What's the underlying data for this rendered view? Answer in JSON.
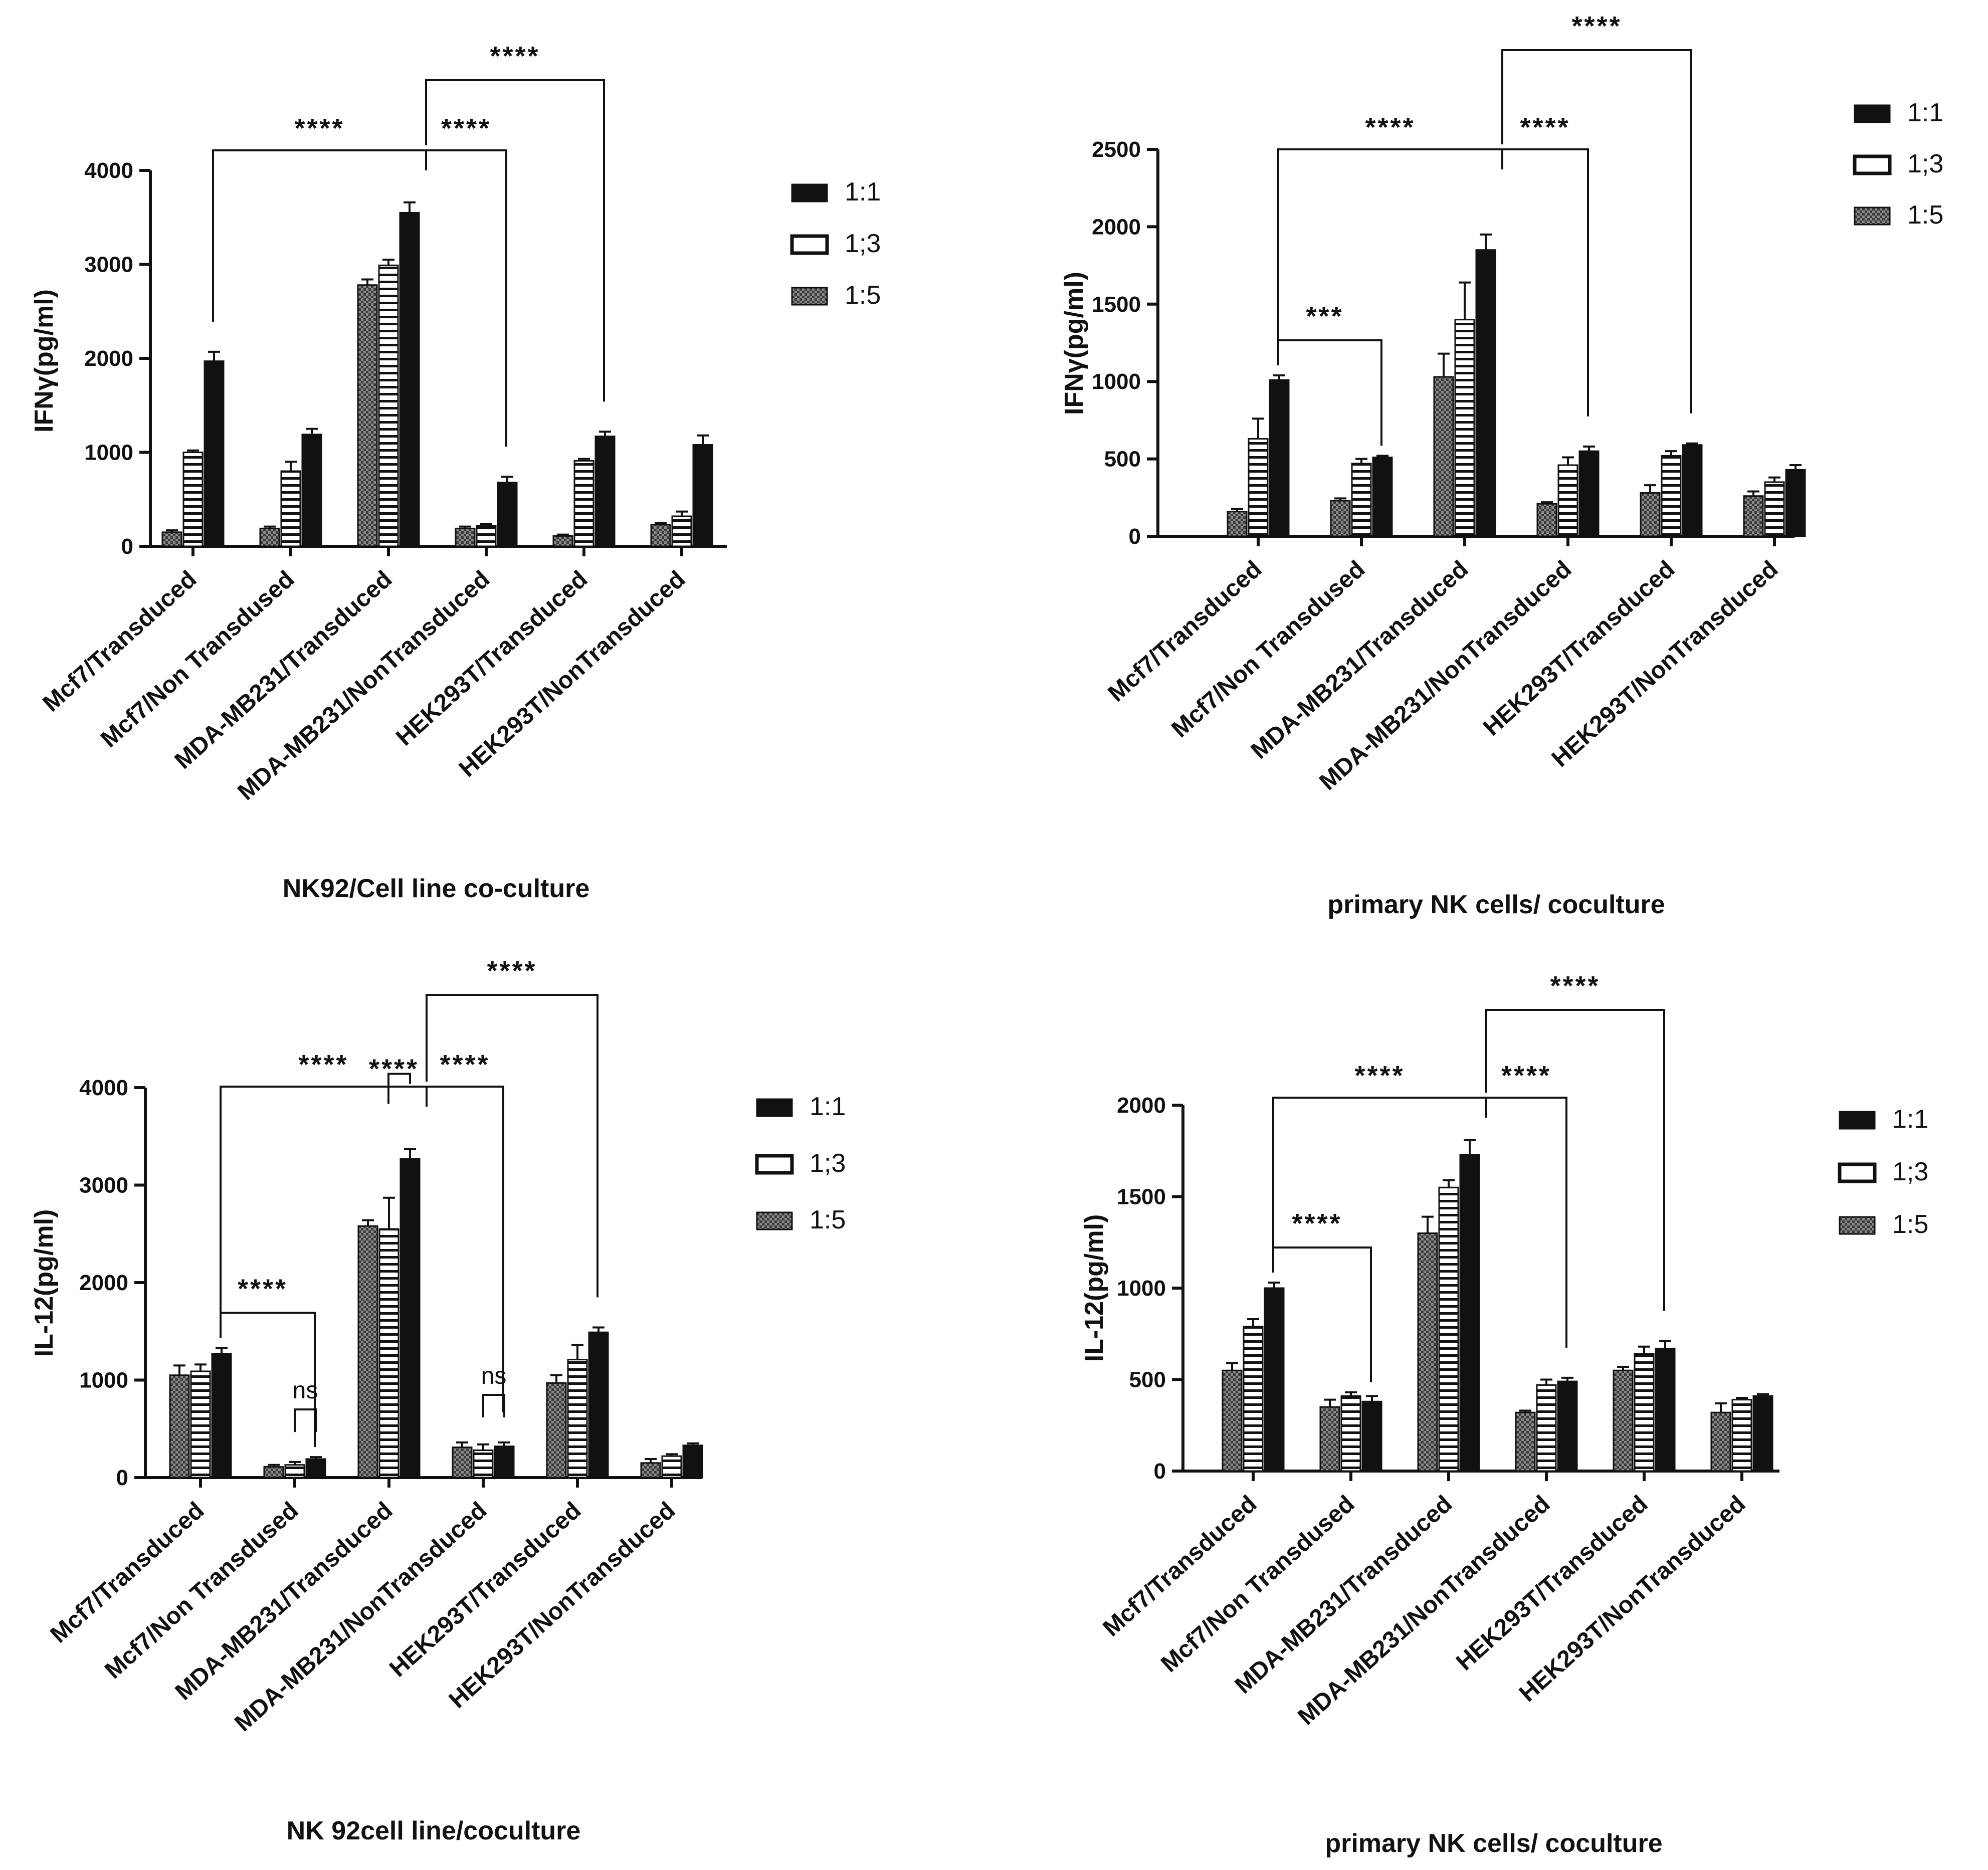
{
  "chart_data": [
    {
      "type": "bar",
      "title": "",
      "ylabel": "IFNγ(pg/ml)",
      "xlabel": "NK92/Cell line co-culture",
      "ylim": [
        0,
        4000
      ],
      "yticks": [
        0,
        1000,
        2000,
        3000,
        4000
      ],
      "legend_position": "right",
      "categories": [
        "Mcf7/Transduced",
        "Mcf7/Non Transdused",
        "MDA-MB231/Transduced",
        "MDA-MB231/NonTransduced",
        "HEK293T/Transduced",
        "HEK293T/NonTransduced"
      ],
      "series": [
        {
          "name": "1:5",
          "values": [
            150,
            190,
            2780,
            190,
            110,
            230
          ],
          "errors": [
            20,
            20,
            60,
            20,
            15,
            20
          ]
        },
        {
          "name": "1;3",
          "values": [
            1000,
            800,
            2990,
            220,
            910,
            320
          ],
          "errors": [
            20,
            100,
            60,
            20,
            20,
            50
          ]
        },
        {
          "name": "1:1",
          "values": [
            1970,
            1190,
            3550,
            680,
            1170,
            1080
          ],
          "errors": [
            100,
            60,
            110,
            60,
            50,
            100
          ]
        }
      ],
      "significance": [
        {
          "from": 0,
          "to": 3,
          "label": "****"
        },
        {
          "from": 2,
          "to": 3,
          "label": "****"
        },
        {
          "from": 2,
          "to": 4,
          "label": "****"
        }
      ]
    },
    {
      "type": "bar",
      "title": "",
      "ylabel": "IFNγ(pg/ml)",
      "xlabel": "primary NK cells/ coculture",
      "ylim": [
        0,
        2500
      ],
      "yticks": [
        0,
        500,
        1000,
        1500,
        2000,
        2500
      ],
      "legend_position": "right",
      "categories": [
        "Mcf7/Transduced",
        "Mcf7/Non Transdused",
        "MDA-MB231/Transduced",
        "MDA-MB231/NonTransduced",
        "HEK293T/Transduced",
        "HEK293T/NonTransduced"
      ],
      "series": [
        {
          "name": "1:5",
          "values": [
            160,
            230,
            1030,
            210,
            280,
            260
          ],
          "errors": [
            15,
            15,
            150,
            10,
            50,
            30
          ]
        },
        {
          "name": "1;3",
          "values": [
            630,
            470,
            1400,
            460,
            520,
            350
          ],
          "errors": [
            130,
            30,
            240,
            50,
            30,
            30
          ]
        },
        {
          "name": "1:1",
          "values": [
            1010,
            510,
            1850,
            550,
            590,
            430
          ],
          "errors": [
            30,
            10,
            100,
            30,
            10,
            30
          ]
        }
      ],
      "significance": [
        {
          "from": 0,
          "to": 1,
          "label": "***"
        },
        {
          "from": 0,
          "to": 3,
          "label": "****"
        },
        {
          "from": 2,
          "to": 3,
          "label": "****"
        },
        {
          "from": 2,
          "to": 4,
          "label": "****"
        }
      ]
    },
    {
      "type": "bar",
      "title": "",
      "ylabel": "IL-12(pg/ml)",
      "xlabel": "NK 92cell line/coculture",
      "ylim": [
        0,
        4000
      ],
      "yticks": [
        0,
        1000,
        2000,
        3000,
        4000
      ],
      "legend_position": "right",
      "categories": [
        "Mcf7/Transduced",
        "Mcf7/Non Transdused",
        "MDA-MB231/Transduced",
        "MDA-MB231/NonTransduced",
        "HEK293T/Transduced",
        "HEK293T/NonTransduced"
      ],
      "series": [
        {
          "name": "1:5",
          "values": [
            1050,
            110,
            2580,
            310,
            970,
            150
          ],
          "errors": [
            100,
            20,
            60,
            50,
            80,
            40
          ]
        },
        {
          "name": "1;3",
          "values": [
            1090,
            130,
            2550,
            280,
            1210,
            220
          ],
          "errors": [
            70,
            30,
            320,
            60,
            150,
            20
          ]
        },
        {
          "name": "1:1",
          "values": [
            1270,
            190,
            3270,
            320,
            1490,
            330
          ],
          "errors": [
            60,
            20,
            100,
            40,
            50,
            20
          ]
        }
      ],
      "significance": [
        {
          "from": 0,
          "to": 1,
          "label": "****"
        },
        {
          "from": 0,
          "to": 3,
          "label": "****"
        },
        {
          "from": 2,
          "to": 3,
          "label": "****"
        },
        {
          "from": 2,
          "to": 4,
          "label": "****"
        },
        {
          "from": 2,
          "to": 2,
          "label": "****"
        },
        {
          "from": 1,
          "to": 1,
          "label": "ns"
        },
        {
          "from": 3,
          "to": 3,
          "label": "ns"
        }
      ]
    },
    {
      "type": "bar",
      "title": "",
      "ylabel": "IL-12(pg/ml)",
      "xlabel": "primary NK cells/ coculture",
      "ylim": [
        0,
        2000
      ],
      "yticks": [
        0,
        500,
        1000,
        1500,
        2000
      ],
      "legend_position": "right",
      "categories": [
        "Mcf7/Transduced",
        "Mcf7/Non Transdused",
        "MDA-MB231/Transduced",
        "MDA-MB231/NonTransduced",
        "HEK293T/Transduced",
        "HEK293T/NonTransduced"
      ],
      "series": [
        {
          "name": "1:5",
          "values": [
            550,
            350,
            1300,
            320,
            550,
            320
          ],
          "errors": [
            40,
            40,
            90,
            10,
            20,
            50
          ]
        },
        {
          "name": "1;3",
          "values": [
            790,
            410,
            1550,
            470,
            640,
            390
          ],
          "errors": [
            40,
            20,
            40,
            30,
            40,
            10
          ]
        },
        {
          "name": "1:1",
          "values": [
            1000,
            380,
            1730,
            490,
            670,
            410
          ],
          "errors": [
            30,
            30,
            80,
            20,
            40,
            10
          ]
        }
      ],
      "significance": [
        {
          "from": 0,
          "to": 1,
          "label": "****"
        },
        {
          "from": 0,
          "to": 3,
          "label": "****"
        },
        {
          "from": 2,
          "to": 3,
          "label": "****"
        },
        {
          "from": 2,
          "to": 4,
          "label": "****"
        }
      ]
    }
  ],
  "legend": [
    {
      "label": "1:1",
      "style": "solid"
    },
    {
      "label": "1;3",
      "style": "open"
    },
    {
      "label": "1:5",
      "style": "hatched"
    }
  ],
  "colors": {
    "ink": "#111111",
    "background": "#ffffff",
    "hatch_fill": "#7a7a7a"
  }
}
